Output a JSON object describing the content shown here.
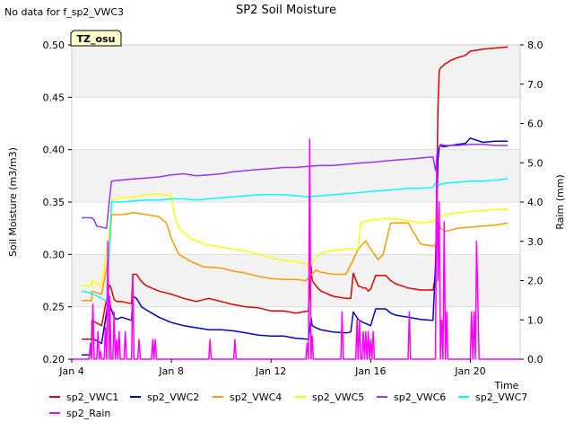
{
  "chart_data": {
    "type": "line",
    "title": "SP2 Soil Moisture",
    "note": "No data for f_sp2_VWC3",
    "badge": "TZ_osu",
    "xlabel": "Time",
    "ylabel": "Soil Moisture (m3/m3)",
    "y2label": "Raim (mm)",
    "xlim": [
      0,
      18
    ],
    "ylim": [
      0.2,
      0.5
    ],
    "y2lim": [
      0.0,
      8.0
    ],
    "x_ticks": [
      {
        "v": 0,
        "label": "Jan 4"
      },
      {
        "v": 4,
        "label": "Jan 8"
      },
      {
        "v": 8,
        "label": "Jan 12"
      },
      {
        "v": 12,
        "label": "Jan 16"
      },
      {
        "v": 16,
        "label": "Jan 20"
      }
    ],
    "y_ticks": [
      {
        "v": 0.2,
        "label": "0.20"
      },
      {
        "v": 0.25,
        "label": "0.25"
      },
      {
        "v": 0.3,
        "label": "0.30"
      },
      {
        "v": 0.35,
        "label": "0.35"
      },
      {
        "v": 0.4,
        "label": "0.40"
      },
      {
        "v": 0.45,
        "label": "0.45"
      },
      {
        "v": 0.5,
        "label": "0.50"
      }
    ],
    "y2_ticks": [
      {
        "v": 0,
        "label": "0.0"
      },
      {
        "v": 1,
        "label": "1.0"
      },
      {
        "v": 2,
        "label": "2.0"
      },
      {
        "v": 3,
        "label": "3.0"
      },
      {
        "v": 4,
        "label": "4.0"
      },
      {
        "v": 5,
        "label": "5.0"
      },
      {
        "v": 6,
        "label": "6.0"
      },
      {
        "v": 7,
        "label": "7.0"
      },
      {
        "v": 8,
        "label": "8.0"
      }
    ],
    "bands": [
      [
        0.25,
        0.3
      ],
      [
        0.35,
        0.4
      ],
      [
        0.45,
        0.5
      ]
    ],
    "band_color": "#f2f2f2",
    "legend_position": "bottom",
    "series": [
      {
        "name": "sp2_VWC1",
        "color": "#e00000",
        "axis": "left",
        "x": [
          0.4,
          0.8,
          0.81,
          1.2,
          1.5,
          1.55,
          1.7,
          1.8,
          2.0,
          2.4,
          2.45,
          2.6,
          2.8,
          3.0,
          3.5,
          4.0,
          4.5,
          5.0,
          5.5,
          6.0,
          6.5,
          7.0,
          7.5,
          8.0,
          8.5,
          9.0,
          9.5,
          9.6,
          9.65,
          9.8,
          10.0,
          10.5,
          11.0,
          11.2,
          11.3,
          11.5,
          11.7,
          11.8,
          11.9,
          12.0,
          12.2,
          12.5,
          12.6,
          12.8,
          13.0,
          13.5,
          14.0,
          14.5,
          14.6,
          14.7,
          14.75,
          14.8,
          14.9,
          15.0,
          15.2,
          15.5,
          15.8,
          16.0,
          16.5,
          17.0,
          17.5
        ],
        "y": [
          0.219,
          0.219,
          0.237,
          0.232,
          0.27,
          0.27,
          0.257,
          0.255,
          0.255,
          0.253,
          0.281,
          0.281,
          0.274,
          0.27,
          0.265,
          0.262,
          0.258,
          0.255,
          0.258,
          0.255,
          0.252,
          0.25,
          0.249,
          0.246,
          0.246,
          0.244,
          0.246,
          0.29,
          0.275,
          0.27,
          0.265,
          0.26,
          0.258,
          0.258,
          0.282,
          0.27,
          0.268,
          0.268,
          0.265,
          0.267,
          0.28,
          0.28,
          0.28,
          0.275,
          0.272,
          0.268,
          0.266,
          0.266,
          0.28,
          0.44,
          0.475,
          0.478,
          0.48,
          0.482,
          0.485,
          0.488,
          0.49,
          0.494,
          0.496,
          0.497,
          0.498
        ]
      },
      {
        "name": "sp2_VWC2",
        "color": "#0000cc",
        "axis": "left",
        "x": [
          0.4,
          0.8,
          0.81,
          1.2,
          1.5,
          1.55,
          1.7,
          1.8,
          2.0,
          2.4,
          2.45,
          2.6,
          2.8,
          3.0,
          3.5,
          4.0,
          4.5,
          5.0,
          5.5,
          6.0,
          6.5,
          7.0,
          7.5,
          8.0,
          8.5,
          9.0,
          9.5,
          9.6,
          9.65,
          9.8,
          10.0,
          10.5,
          11.0,
          11.2,
          11.3,
          11.5,
          11.7,
          11.8,
          11.9,
          12.0,
          12.2,
          12.5,
          12.6,
          12.8,
          13.0,
          13.5,
          14.0,
          14.5,
          14.6,
          14.7,
          14.75,
          14.8,
          14.9,
          15.0,
          15.2,
          15.5,
          15.8,
          16.0,
          16.5,
          17.0,
          17.5
        ],
        "y": [
          0.204,
          0.204,
          0.22,
          0.215,
          0.26,
          0.25,
          0.24,
          0.238,
          0.24,
          0.237,
          0.26,
          0.258,
          0.25,
          0.247,
          0.24,
          0.235,
          0.232,
          0.23,
          0.228,
          0.228,
          0.227,
          0.225,
          0.223,
          0.222,
          0.222,
          0.22,
          0.219,
          0.24,
          0.232,
          0.23,
          0.228,
          0.226,
          0.225,
          0.226,
          0.245,
          0.238,
          0.235,
          0.234,
          0.233,
          0.232,
          0.248,
          0.248,
          0.248,
          0.244,
          0.242,
          0.24,
          0.238,
          0.237,
          0.29,
          0.39,
          0.402,
          0.404,
          0.403,
          0.403,
          0.404,
          0.405,
          0.406,
          0.411,
          0.407,
          0.408,
          0.408
        ]
      },
      {
        "name": "sp2_VWC4",
        "color": "#ff9900",
        "axis": "left",
        "x": [
          0.4,
          0.8,
          0.81,
          1.2,
          1.5,
          1.6,
          2.0,
          2.5,
          3.0,
          3.5,
          3.8,
          4.0,
          4.3,
          4.8,
          5.3,
          6.0,
          6.5,
          7.0,
          7.5,
          8.0,
          8.5,
          9.0,
          9.4,
          9.6,
          9.8,
          10.0,
          10.5,
          11.0,
          11.2,
          11.5,
          11.8,
          12.0,
          12.3,
          12.5,
          12.8,
          13.0,
          13.5,
          14.0,
          14.5,
          14.6,
          14.7,
          14.75,
          14.8,
          15.0,
          15.5,
          16.0,
          16.5,
          17.0,
          17.5
        ],
        "y": [
          0.256,
          0.256,
          0.265,
          0.262,
          0.3,
          0.338,
          0.338,
          0.34,
          0.338,
          0.336,
          0.33,
          0.315,
          0.3,
          0.293,
          0.288,
          0.287,
          0.284,
          0.282,
          0.279,
          0.277,
          0.276,
          0.276,
          0.275,
          0.28,
          0.285,
          0.283,
          0.281,
          0.281,
          0.29,
          0.305,
          0.313,
          0.305,
          0.295,
          0.3,
          0.33,
          0.33,
          0.33,
          0.31,
          0.308,
          0.31,
          0.32,
          0.33,
          0.325,
          0.322,
          0.325,
          0.326,
          0.327,
          0.328,
          0.33
        ]
      },
      {
        "name": "sp2_VWC5",
        "color": "#ffff00",
        "axis": "left",
        "x": [
          0.4,
          0.8,
          0.81,
          1.2,
          1.5,
          1.6,
          2.0,
          2.5,
          3.0,
          3.5,
          4.0,
          4.1,
          4.3,
          4.8,
          5.3,
          6.0,
          6.5,
          7.0,
          7.5,
          8.0,
          8.5,
          9.0,
          9.4,
          9.6,
          9.8,
          10.0,
          10.5,
          11.0,
          11.2,
          11.5,
          11.6,
          12.0,
          12.5,
          13.0,
          13.5,
          14.0,
          14.5,
          14.6,
          14.7,
          14.75,
          14.8,
          15.0,
          15.5,
          16.0,
          16.5,
          17.0,
          17.5
        ],
        "y": [
          0.27,
          0.27,
          0.275,
          0.27,
          0.32,
          0.352,
          0.354,
          0.355,
          0.357,
          0.358,
          0.356,
          0.34,
          0.325,
          0.315,
          0.31,
          0.307,
          0.305,
          0.303,
          0.3,
          0.297,
          0.294,
          0.293,
          0.291,
          0.29,
          0.297,
          0.301,
          0.304,
          0.305,
          0.305,
          0.305,
          0.33,
          0.333,
          0.334,
          0.334,
          0.332,
          0.33,
          0.331,
          0.335,
          0.34,
          0.338,
          0.336,
          0.338,
          0.34,
          0.341,
          0.342,
          0.343,
          0.343
        ]
      },
      {
        "name": "sp2_VWC6",
        "color": "#9933ff",
        "axis": "left",
        "x": [
          0.4,
          0.8,
          0.9,
          1.0,
          1.4,
          1.5,
          1.6,
          2.0,
          2.5,
          3.0,
          3.5,
          4.0,
          4.5,
          5.0,
          5.5,
          6.0,
          6.5,
          7.0,
          7.5,
          8.0,
          8.5,
          9.0,
          9.5,
          10.0,
          10.5,
          11.0,
          11.5,
          12.0,
          12.5,
          13.0,
          13.5,
          14.0,
          14.5,
          14.6,
          14.7,
          14.75,
          14.8,
          15.0,
          15.5,
          16.0,
          16.5,
          17.0,
          17.5
        ],
        "y": [
          0.335,
          0.335,
          0.333,
          0.327,
          0.325,
          0.35,
          0.37,
          0.371,
          0.372,
          0.373,
          0.374,
          0.376,
          0.377,
          0.375,
          0.376,
          0.377,
          0.379,
          0.38,
          0.381,
          0.382,
          0.383,
          0.383,
          0.384,
          0.385,
          0.385,
          0.386,
          0.387,
          0.388,
          0.389,
          0.39,
          0.391,
          0.392,
          0.393,
          0.38,
          0.4,
          0.403,
          0.405,
          0.404,
          0.404,
          0.405,
          0.405,
          0.404,
          0.404
        ]
      },
      {
        "name": "sp2_VWC7",
        "color": "#00ffff",
        "axis": "left",
        "x": [
          0.4,
          0.8,
          1.2,
          1.4,
          1.5,
          1.6,
          2.0,
          2.5,
          3.0,
          3.5,
          4.0,
          4.5,
          5.0,
          5.5,
          6.0,
          6.5,
          7.0,
          7.5,
          8.0,
          8.5,
          9.0,
          9.5,
          10.0,
          10.5,
          11.0,
          11.5,
          12.0,
          12.5,
          13.0,
          13.5,
          14.0,
          14.5,
          14.6,
          14.7,
          14.75,
          14.8,
          15.0,
          15.5,
          16.0,
          16.5,
          17.0,
          17.5
        ],
        "y": [
          0.265,
          0.263,
          0.258,
          0.255,
          0.3,
          0.35,
          0.35,
          0.351,
          0.352,
          0.352,
          0.353,
          0.353,
          0.352,
          0.353,
          0.354,
          0.355,
          0.356,
          0.357,
          0.357,
          0.357,
          0.356,
          0.355,
          0.356,
          0.357,
          0.358,
          0.359,
          0.36,
          0.361,
          0.362,
          0.363,
          0.363,
          0.364,
          0.368,
          0.367,
          0.366,
          0.367,
          0.368,
          0.369,
          0.37,
          0.37,
          0.371,
          0.372
        ]
      },
      {
        "name": "sp2_Rain",
        "color": "#ff00ff",
        "axis": "right",
        "x": [
          0.0,
          0.7,
          0.75,
          0.8,
          0.85,
          0.9,
          1.0,
          1.05,
          1.1,
          1.15,
          1.2,
          1.3,
          1.35,
          1.4,
          1.45,
          1.5,
          1.52,
          1.58,
          1.65,
          1.7,
          1.75,
          1.8,
          1.85,
          1.9,
          1.95,
          2.1,
          2.15,
          2.2,
          2.4,
          2.45,
          2.5,
          2.65,
          2.7,
          2.75,
          3.2,
          3.25,
          3.3,
          3.35,
          3.4,
          3.45,
          5.5,
          5.55,
          5.6,
          6.5,
          6.55,
          6.6,
          9.4,
          9.45,
          9.5,
          9.55,
          9.6,
          9.65,
          9.7,
          9.75,
          10.8,
          10.85,
          10.9,
          11.4,
          11.45,
          11.5,
          11.55,
          11.6,
          11.65,
          11.7,
          11.75,
          11.8,
          11.85,
          11.9,
          11.95,
          12.0,
          12.05,
          12.1,
          12.15,
          12.2,
          13.5,
          13.55,
          13.6,
          14.6,
          14.65,
          14.7,
          14.75,
          14.8,
          14.85,
          14.9,
          14.95,
          15.0,
          15.05,
          15.1,
          15.15,
          16.0,
          16.05,
          16.1,
          16.15,
          16.2,
          16.25,
          16.3,
          16.35,
          16.4,
          18.0
        ],
        "y": [
          0,
          0,
          0.4,
          0,
          1.4,
          0,
          0,
          0.7,
          0,
          0.2,
          0,
          0,
          0.8,
          0,
          3.0,
          0,
          1.6,
          0,
          0,
          1.2,
          0,
          0.5,
          0,
          0.7,
          0,
          0,
          0.7,
          0,
          0,
          2.1,
          0,
          0,
          0.5,
          0,
          0,
          0.5,
          0,
          0.5,
          0,
          0,
          0,
          0.5,
          0,
          0,
          0.5,
          0,
          0,
          0.4,
          0,
          5.6,
          0,
          0.6,
          0,
          0,
          0,
          1.2,
          0,
          0,
          1.0,
          0,
          1.0,
          0,
          0,
          0.7,
          0,
          0.7,
          0,
          0.7,
          0,
          0.5,
          0,
          0.7,
          0,
          0,
          0,
          1.2,
          0,
          0,
          5.2,
          2.0,
          4.0,
          0,
          1.0,
          0,
          3.5,
          0,
          1.2,
          0,
          0,
          0,
          1.2,
          0,
          1.2,
          0,
          3.0,
          1.5,
          0,
          0,
          0
        ]
      }
    ]
  }
}
